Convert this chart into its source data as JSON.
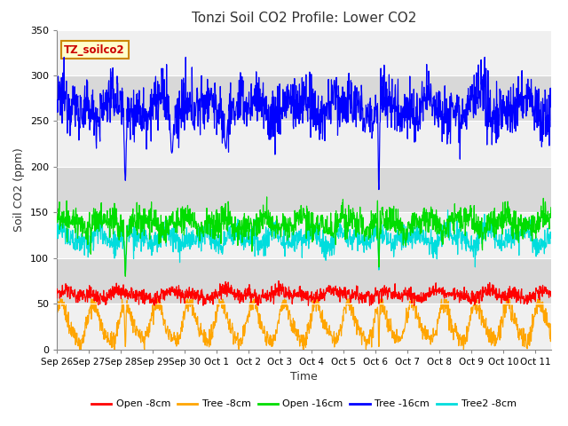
{
  "title": "Tonzi Soil CO2 Profile: Lower CO2",
  "xlabel": "Time",
  "ylabel": "Soil CO2 (ppm)",
  "legend_label": "TZ_soilco2",
  "ylim": [
    0,
    350
  ],
  "yticks": [
    0,
    50,
    100,
    150,
    200,
    250,
    300,
    350
  ],
  "background_color": "#ffffff",
  "plot_bg_color": "#e0e0e0",
  "band_light": "#f0f0f0",
  "band_dark": "#d8d8d8",
  "series": {
    "open_8cm": {
      "color": "#ff0000",
      "label": "Open -8cm"
    },
    "tree_8cm": {
      "color": "#ffa500",
      "label": "Tree -8cm"
    },
    "open_16cm": {
      "color": "#00dd00",
      "label": "Open -16cm"
    },
    "tree_16cm": {
      "color": "#0000ff",
      "label": "Tree -16cm"
    },
    "tree2_8cm": {
      "color": "#00dddd",
      "label": "Tree2 -8cm"
    }
  },
  "x_tick_labels": [
    "Sep 26",
    "Sep 27",
    "Sep 28",
    "Sep 29",
    "Sep 30",
    "Oct 1",
    "Oct 2",
    "Oct 3",
    "Oct 4",
    "Oct 5",
    "Oct 6",
    "Oct 7",
    "Oct 8",
    "Oct 9",
    "Oct 10",
    "Oct 11"
  ],
  "x_tick_positions": [
    0,
    1,
    2,
    3,
    4,
    5,
    6,
    7,
    8,
    9,
    10,
    11,
    12,
    13,
    14,
    15
  ],
  "title_fontsize": 11,
  "label_fontsize": 9,
  "tick_fontsize": 8,
  "legend_box_color": "#ffffcc",
  "legend_box_edge": "#cc8800",
  "figsize": [
    6.4,
    4.8
  ],
  "dpi": 100
}
